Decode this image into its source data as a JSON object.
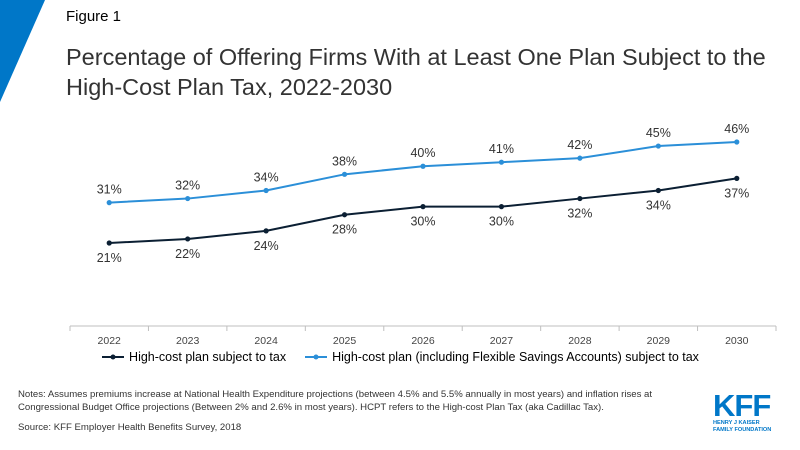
{
  "figure_label": "Figure 1",
  "chart_data": {
    "type": "line",
    "title": "Percentage of Offering Firms With at Least One Plan Subject to the High-Cost Plan Tax, 2022-2030",
    "categories": [
      "2022",
      "2023",
      "2024",
      "2025",
      "2026",
      "2027",
      "2028",
      "2029",
      "2030"
    ],
    "series": [
      {
        "name": "High-cost plan subject to tax",
        "values": [
          21,
          22,
          24,
          28,
          30,
          30,
          32,
          34,
          37
        ],
        "labels": [
          "21%",
          "22%",
          "24%",
          "28%",
          "30%",
          "30%",
          "32%",
          "34%",
          "37%"
        ],
        "color": "#0b1f33"
      },
      {
        "name": "High-cost plan (including Flexible Savings Accounts) subject to tax",
        "values": [
          31,
          32,
          34,
          38,
          40,
          41,
          42,
          45,
          46
        ],
        "labels": [
          "31%",
          "32%",
          "34%",
          "38%",
          "40%",
          "41%",
          "42%",
          "45%",
          "46%"
        ],
        "color": "#2b8fd8"
      }
    ],
    "xlabel": "",
    "ylabel": "",
    "ylim": [
      0,
      60
    ],
    "grid": false,
    "legend": "bottom"
  },
  "notes": "Notes: Assumes premiums increase at National Health Expenditure projections (between 4.5% and 5.5% annually in most years) and inflation rises at Congressional Budget Office projections (Between 2% and 2.6% in most years). HCPT refers to the High-cost Plan Tax (aka Cadillac Tax).",
  "source": "Source: KFF Employer Health Benefits Survey, 2018",
  "logo": {
    "main": "KFF",
    "sub1": "HENRY J KAISER",
    "sub2": "FAMILY FOUNDATION"
  },
  "colors": {
    "accent": "#0077c8"
  }
}
